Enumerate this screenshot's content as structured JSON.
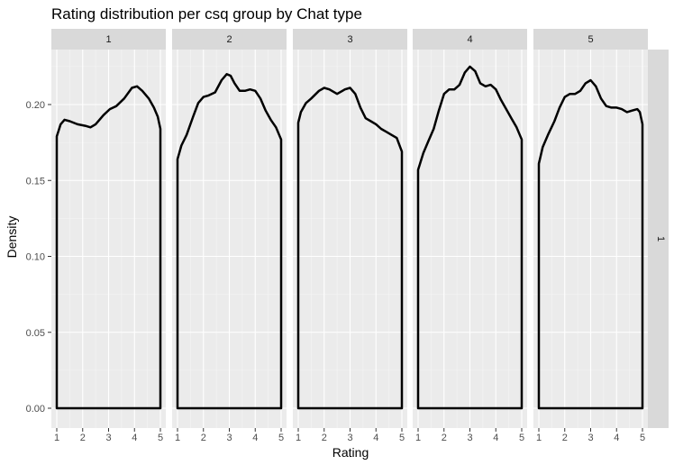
{
  "chart_data": {
    "type": "area",
    "title": "Rating distribution per csq group by Chat type",
    "xlabel": "Rating",
    "ylabel": "Density",
    "xlim": [
      1,
      5
    ],
    "ylim": [
      0,
      0.22
    ],
    "x_ticks": [
      "1",
      "2",
      "3",
      "4",
      "5"
    ],
    "y_ticks": [
      "0.00",
      "0.05",
      "0.10",
      "0.15",
      "0.20"
    ],
    "y_tick_values": [
      0,
      0.05,
      0.1,
      0.15,
      0.2
    ],
    "grid": true,
    "row_strip": "1",
    "colors": {
      "panel": "#ebebeb",
      "strip": "#d9d9d9",
      "grid_major": "#ffffff",
      "grid_minor": "#f5f5f5",
      "line": "#000000"
    },
    "panels": [
      {
        "facet": "1",
        "x": [
          1,
          1.15,
          1.3,
          1.5,
          1.8,
          2.1,
          2.3,
          2.5,
          2.8,
          3.05,
          3.3,
          3.6,
          3.9,
          4.1,
          4.3,
          4.55,
          4.75,
          4.9,
          5
        ],
        "y": [
          0.179,
          0.187,
          0.19,
          0.189,
          0.187,
          0.186,
          0.185,
          0.187,
          0.193,
          0.197,
          0.199,
          0.204,
          0.211,
          0.212,
          0.209,
          0.204,
          0.198,
          0.192,
          0.184
        ]
      },
      {
        "facet": "2",
        "x": [
          1,
          1.15,
          1.35,
          1.6,
          1.8,
          2.0,
          2.2,
          2.45,
          2.7,
          2.9,
          3.05,
          3.2,
          3.4,
          3.6,
          3.8,
          4.0,
          4.2,
          4.4,
          4.6,
          4.8,
          5
        ],
        "y": [
          0.164,
          0.173,
          0.18,
          0.192,
          0.201,
          0.205,
          0.206,
          0.208,
          0.216,
          0.22,
          0.219,
          0.214,
          0.209,
          0.209,
          0.21,
          0.209,
          0.204,
          0.196,
          0.19,
          0.185,
          0.177
        ]
      },
      {
        "facet": "3",
        "x": [
          1,
          1.1,
          1.3,
          1.5,
          1.8,
          2.0,
          2.2,
          2.5,
          2.8,
          3.0,
          3.2,
          3.4,
          3.6,
          3.8,
          4.0,
          4.2,
          4.4,
          4.6,
          4.8,
          5
        ],
        "y": [
          0.188,
          0.195,
          0.201,
          0.204,
          0.209,
          0.211,
          0.21,
          0.207,
          0.21,
          0.211,
          0.207,
          0.198,
          0.191,
          0.189,
          0.187,
          0.184,
          0.182,
          0.18,
          0.178,
          0.169
        ]
      },
      {
        "facet": "4",
        "x": [
          1,
          1.2,
          1.4,
          1.6,
          1.8,
          2.0,
          2.2,
          2.4,
          2.6,
          2.8,
          3.0,
          3.2,
          3.4,
          3.6,
          3.8,
          4.0,
          4.2,
          4.4,
          4.6,
          4.8,
          5
        ],
        "y": [
          0.157,
          0.168,
          0.176,
          0.184,
          0.196,
          0.207,
          0.21,
          0.21,
          0.213,
          0.221,
          0.225,
          0.222,
          0.214,
          0.212,
          0.213,
          0.21,
          0.203,
          0.197,
          0.191,
          0.185,
          0.177
        ]
      },
      {
        "facet": "5",
        "x": [
          1,
          1.15,
          1.35,
          1.6,
          1.8,
          2.0,
          2.2,
          2.4,
          2.6,
          2.8,
          3.0,
          3.2,
          3.4,
          3.6,
          3.8,
          4.0,
          4.2,
          4.4,
          4.6,
          4.8,
          4.9,
          5
        ],
        "y": [
          0.161,
          0.172,
          0.18,
          0.189,
          0.198,
          0.205,
          0.207,
          0.207,
          0.209,
          0.214,
          0.216,
          0.212,
          0.204,
          0.199,
          0.198,
          0.198,
          0.197,
          0.195,
          0.196,
          0.197,
          0.195,
          0.187
        ]
      }
    ]
  }
}
